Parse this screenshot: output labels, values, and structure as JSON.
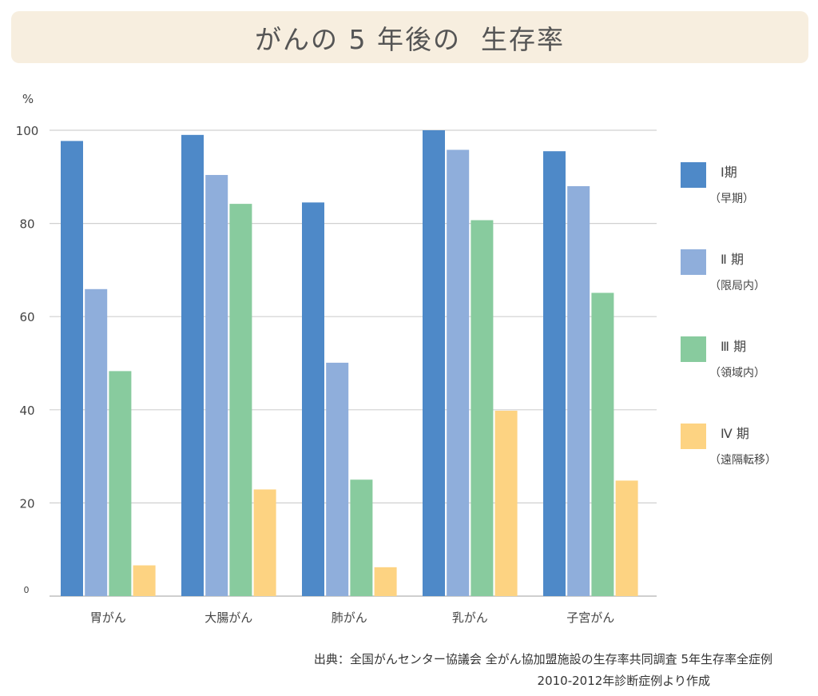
{
  "chart_data": {
    "type": "bar",
    "title": "がんの 5 年後の  生存率",
    "ylabel": "%",
    "ylim": [
      0,
      100
    ],
    "yticks": [
      0,
      20,
      40,
      60,
      80,
      100
    ],
    "ytick_labels": [
      "0",
      "20",
      "40",
      "60",
      "80",
      "100"
    ],
    "categories": [
      "胃がん",
      "大腸がん",
      "肺がん",
      "乳がん",
      "子宮がん"
    ],
    "series": [
      {
        "name": "Ⅰ期",
        "desc": "（早期）",
        "color": "#4e89c8",
        "values": [
          97.7,
          99.0,
          84.5,
          100.0,
          95.5
        ]
      },
      {
        "name": "Ⅱ 期",
        "desc": "（限局内）",
        "color": "#8faedb",
        "values": [
          65.9,
          90.4,
          50.1,
          95.8,
          88.0
        ]
      },
      {
        "name": "Ⅲ 期",
        "desc": "（領域内）",
        "color": "#88cb9e",
        "values": [
          48.3,
          84.2,
          25.0,
          80.7,
          65.1
        ]
      },
      {
        "name": "Ⅳ 期",
        "desc": "（遠隔転移）",
        "color": "#fdd382",
        "values": [
          6.6,
          22.9,
          6.2,
          39.8,
          24.8
        ]
      }
    ],
    "grid": true,
    "legend_position": "right"
  },
  "source": {
    "line1": "出典：全国がんセンター協議会 全がん協加盟施設の生存率共同調査 5年生存率全症例",
    "line2": "2010-2012年診断症例より作成"
  }
}
